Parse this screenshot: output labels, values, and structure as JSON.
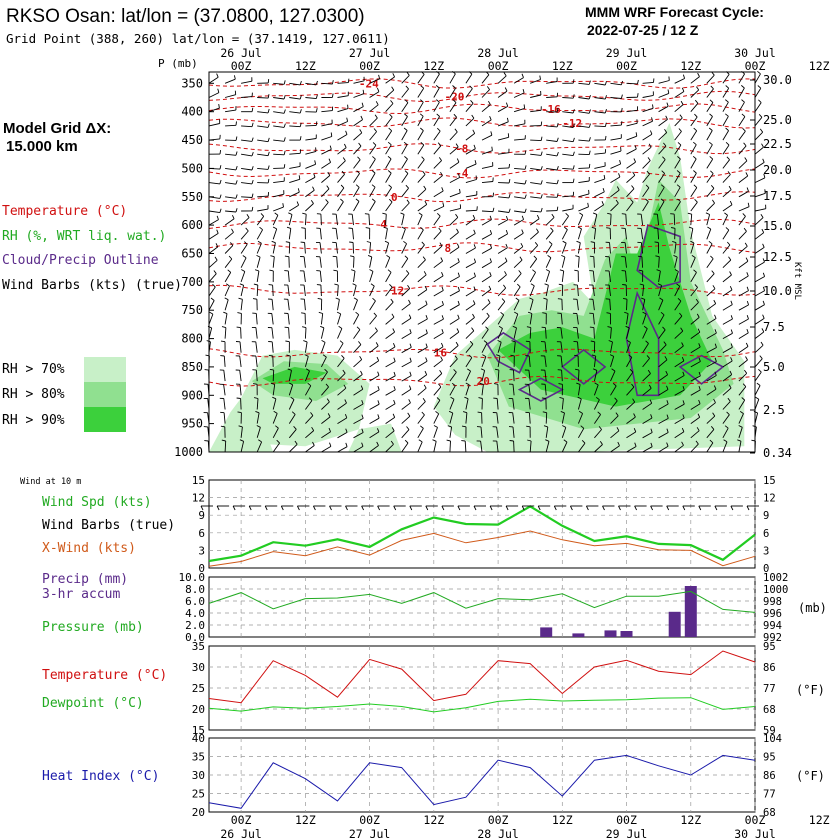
{
  "header": {
    "station": "RKSO Osan:  lat/lon = (37.0800, 127.0300)",
    "grid_point": "Grid Point (388, 260) lat/lon = (37.1419, 127.0611)",
    "model_title": "MMM WRF Forecast Cycle:",
    "cycle": "2022-07-25 / 12  Z"
  },
  "left_panel": {
    "model_grid_line1": "Model Grid ΔX:",
    "model_grid_line2": "15.000 km",
    "legend_temperature": "Temperature (°C)",
    "legend_rh": "RH (%, WRT liq. wat.)",
    "legend_cloud": "Cloud/Precip Outline",
    "legend_wind": "Wind Barbs (kts) (true)",
    "rh_levels": [
      "RH > 70%",
      "RH > 80%",
      "RH > 90%"
    ]
  },
  "colors": {
    "temperature": "#d01010",
    "rh70": "#c8f0c8",
    "rh80": "#90e090",
    "rh90": "#3cd03c",
    "cloud_outline": "#5a2a8a",
    "wind_speed": "#22cc22",
    "x_wind": "#d05a1a",
    "precip": "#5a2a8a",
    "pressure": "#22aa22",
    "dewpoint": "#22cc22",
    "heat_index": "#1a1aaa",
    "label_purple": "#5a2a8a",
    "label_blue": "#1a1aaa"
  },
  "time_axis": {
    "dates_top": [
      "26 Jul",
      "27 Jul",
      "28 Jul",
      "29 Jul",
      "30 Jul"
    ],
    "dates_bottom": [
      "26 Jul",
      "27 Jul",
      "28 Jul",
      "29 Jul",
      "30 Jul"
    ],
    "ticks": [
      "00Z",
      "12Z",
      "00Z",
      "12Z",
      "00Z",
      "12Z",
      "00Z",
      "12Z",
      "00Z",
      "12Z"
    ]
  },
  "chart_data": [
    {
      "type": "heatmap",
      "name": "cross-section",
      "ylabel_left": "P (mb)",
      "ylabel_right": "Kft MSL",
      "pressure_levels": [
        350,
        400,
        450,
        500,
        550,
        600,
        650,
        700,
        750,
        800,
        850,
        900,
        950,
        1000
      ],
      "height_labels": [
        "30.0",
        "25.0",
        "22.5",
        "20.0",
        "17.5",
        "15.0",
        "12.5",
        "10.0",
        "7.5",
        "5.0",
        "2.5",
        "0.34"
      ],
      "temperature_contours_c": [
        -24,
        -20,
        -16,
        -12,
        -8,
        -4,
        0,
        4,
        8,
        12,
        16,
        20
      ]
    },
    {
      "type": "line",
      "name": "wind",
      "label_wind_at": "Wind at 10 m",
      "legend": [
        "Wind Spd (kts)",
        "Wind Barbs (true)",
        "X-Wind (kts)"
      ],
      "y_ticks": [
        "15",
        "12",
        "9",
        "6",
        "3",
        "0"
      ],
      "ylim": [
        0,
        15
      ],
      "hours": [
        0,
        6,
        12,
        18,
        24,
        30,
        36,
        42,
        48,
        54,
        60,
        66,
        72,
        78,
        84,
        90,
        96,
        102
      ],
      "wind_speed": [
        1.2,
        2.1,
        4.4,
        3.8,
        4.9,
        3.6,
        6.6,
        8.6,
        7.5,
        7.4,
        10.5,
        7.2,
        4.6,
        5.4,
        4.1,
        3.9,
        1.4,
        5.7
      ],
      "x_wind": [
        0.3,
        1.1,
        2.8,
        2.1,
        3.6,
        2.2,
        4.7,
        5.9,
        4.3,
        5.2,
        6.3,
        4.8,
        3.8,
        4.2,
        3.1,
        3.0,
        0.4,
        2.0
      ]
    },
    {
      "type": "bar",
      "name": "precip-pressure",
      "legend": [
        "Precip (mm)",
        "3-hr accum",
        "Pressure (mb)"
      ],
      "y_ticks_left": [
        "10.0",
        "8.0",
        "6.0",
        "4.0",
        "2.0",
        "0.0"
      ],
      "y_ticks_right": [
        "1002",
        "1000",
        "998",
        "996",
        "994",
        "992"
      ],
      "ylim_left": [
        0,
        10
      ],
      "ylim_right": [
        992,
        1002
      ],
      "precip_hours": [
        63,
        69,
        75,
        78,
        87,
        90
      ],
      "precip_mm": [
        1.6,
        0.6,
        1.1,
        1.0,
        4.2,
        8.5
      ],
      "pressure_hours": [
        0,
        6,
        12,
        18,
        24,
        30,
        36,
        42,
        48,
        54,
        60,
        66,
        72,
        78,
        84,
        90,
        96,
        102
      ],
      "pressure_mb": [
        997.6,
        999.4,
        996.7,
        998.4,
        998.5,
        999.1,
        997.6,
        999.4,
        996.8,
        998.4,
        998.2,
        999.2,
        996.9,
        998.8,
        998.8,
        999.6,
        996.6,
        996.1
      ]
    },
    {
      "type": "line",
      "name": "temperature-dewpoint",
      "legend": [
        "Temperature (°C)",
        "Dewpoint (°C)"
      ],
      "y_ticks_left": [
        "35",
        "30",
        "25",
        "20",
        "15"
      ],
      "y_ticks_right": [
        "95",
        "86",
        "77",
        "68",
        "59"
      ],
      "unit_right": "(°F)",
      "ylim": [
        15,
        35
      ],
      "hours": [
        0,
        6,
        12,
        18,
        24,
        30,
        36,
        42,
        48,
        54,
        60,
        66,
        72,
        78,
        84,
        90,
        96,
        102
      ],
      "temperature": [
        22.5,
        21.5,
        31.5,
        28.0,
        22.8,
        31.8,
        29.5,
        22.0,
        23.5,
        31.5,
        30.8,
        23.7,
        30.0,
        31.6,
        29.0,
        28.2,
        33.8,
        31.2
      ],
      "dewpoint": [
        20.2,
        19.5,
        20.5,
        20.2,
        20.6,
        21.2,
        20.6,
        19.3,
        20.3,
        21.8,
        22.3,
        21.9,
        22.1,
        22.2,
        22.6,
        22.7,
        19.9,
        20.6
      ]
    },
    {
      "type": "line",
      "name": "heat-index",
      "legend": [
        "Heat Index (°C)"
      ],
      "y_ticks_left": [
        "40",
        "35",
        "30",
        "25",
        "20"
      ],
      "y_ticks_right": [
        "104",
        "95",
        "86",
        "77",
        "68"
      ],
      "unit_right": "(°F)",
      "ylim": [
        20,
        40
      ],
      "hours": [
        0,
        6,
        12,
        18,
        24,
        30,
        36,
        42,
        48,
        54,
        60,
        66,
        72,
        78,
        84,
        90,
        96,
        102
      ],
      "heat_index": [
        22.5,
        21.0,
        33.3,
        29.0,
        23.0,
        33.3,
        32.0,
        22.0,
        24.0,
        34.0,
        32.0,
        24.3,
        34.0,
        35.3,
        32.5,
        30.0,
        35.3,
        34.0
      ]
    }
  ]
}
